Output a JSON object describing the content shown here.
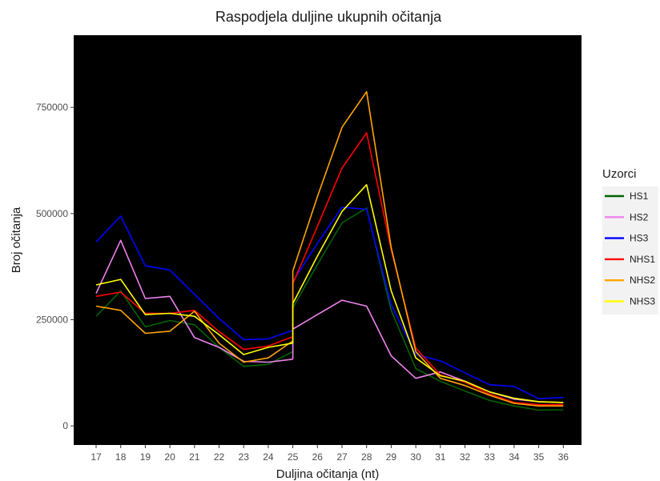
{
  "chart_data": {
    "type": "line",
    "title": "Raspodjela duljine ukupnih očitanja",
    "xlabel": "Duljina očitanja (nt)",
    "ylabel": "Broj očitanja",
    "x": [
      "17",
      "18",
      "19",
      "20",
      "21",
      "22",
      "23",
      "24",
      "25",
      "26",
      "27",
      "28",
      "29",
      "30",
      "31",
      "32",
      "33",
      "34",
      "35",
      "36"
    ],
    "y_ticks": [
      0,
      250000,
      500000,
      750000
    ],
    "y_tick_labels": [
      "0",
      "250000",
      "500000",
      "750000"
    ],
    "ylim": [
      -45000,
      920000
    ],
    "grid": false,
    "background": "#000000",
    "legend": {
      "title": "Uzorci",
      "position": "right"
    },
    "series": [
      {
        "name": "HS1",
        "color": "#006400",
        "segments": [
          {
            "x": [
              17,
              18,
              19,
              20,
              21,
              22,
              23,
              24,
              25
            ],
            "y": [
              258000,
              318000,
              233000,
              248000,
              238000,
              185000,
              140000,
              145000,
              175000
            ]
          },
          {
            "x": [
              25,
              26,
              27,
              28,
              29,
              30,
              31,
              32,
              33,
              34,
              35,
              36
            ],
            "y": [
              278000,
              380000,
              478000,
              513000,
              272000,
              135000,
              105000,
              82000,
              60000,
              47000,
              37000,
              38000
            ]
          }
        ]
      },
      {
        "name": "HS2",
        "color": "#ee82ee",
        "segments": [
          {
            "x": [
              17,
              18,
              19,
              20,
              21,
              22,
              23,
              24,
              25
            ],
            "y": [
              312000,
              437000,
              300000,
              305000,
              208000,
              185000,
              152000,
              150000,
              157000
            ]
          },
          {
            "x": [
              25,
              26,
              27,
              28,
              29,
              30,
              31,
              32,
              33,
              34,
              35,
              36
            ],
            "y": [
              228000,
              262000,
              296000,
              282000,
              165000,
              112000,
              127000,
              105000,
              80000,
              63000,
              57000,
              55000
            ]
          }
        ]
      },
      {
        "name": "HS3",
        "color": "#0000ff",
        "segments": [
          {
            "x": [
              17,
              18,
              19,
              20,
              21,
              22,
              23,
              24,
              25
            ],
            "y": [
              433000,
              494000,
              377000,
              367000,
              310000,
              253000,
              203000,
              205000,
              225000
            ]
          },
          {
            "x": [
              25,
              26,
              27,
              28,
              29,
              30,
              31,
              32,
              33,
              34,
              35,
              36
            ],
            "y": [
              340000,
              430000,
              515000,
              510000,
              285000,
              168000,
              153000,
              125000,
              97000,
              93000,
              64000,
              67000
            ]
          }
        ]
      },
      {
        "name": "NHS1",
        "color": "#ff0000",
        "segments": [
          {
            "x": [
              17,
              18,
              19,
              20,
              21,
              22,
              23,
              24,
              25
            ],
            "y": [
              305000,
              315000,
              265000,
              265000,
              272000,
              222000,
              180000,
              188000,
              210000
            ]
          },
          {
            "x": [
              25,
              26,
              27,
              28,
              29,
              30,
              31,
              32,
              33,
              34,
              35,
              36
            ],
            "y": [
              335000,
              470000,
              607000,
              690000,
              415000,
              183000,
              120000,
              103000,
              75000,
              55000,
              50000,
              50000
            ]
          }
        ]
      },
      {
        "name": "NHS2",
        "color": "#ffa500",
        "segments": [
          {
            "x": [
              17,
              18,
              19,
              20,
              21,
              22,
              23,
              24,
              25
            ],
            "y": [
              282000,
              272000,
              218000,
              223000,
              270000,
              195000,
              150000,
              160000,
              200000
            ]
          },
          {
            "x": [
              25,
              26,
              27,
              28,
              29,
              30,
              31,
              32,
              33,
              34,
              35,
              36
            ],
            "y": [
              365000,
              540000,
              703000,
              787000,
              420000,
              175000,
              112000,
              95000,
              72000,
              53000,
              47000,
              47000
            ]
          }
        ]
      },
      {
        "name": "NHS3",
        "color": "#ffff00",
        "segments": [
          {
            "x": [
              17,
              18,
              19,
              20,
              21,
              22,
              23,
              24,
              25
            ],
            "y": [
              332000,
              345000,
              262000,
              265000,
              258000,
              215000,
              168000,
              185000,
              195000
            ]
          },
          {
            "x": [
              25,
              26,
              27,
              28,
              29,
              30,
              31,
              32,
              33,
              34,
              35,
              36
            ],
            "y": [
              288000,
              400000,
              505000,
              568000,
              318000,
              160000,
              118000,
              105000,
              80000,
              65000,
              57000,
              55000
            ]
          }
        ]
      }
    ]
  }
}
